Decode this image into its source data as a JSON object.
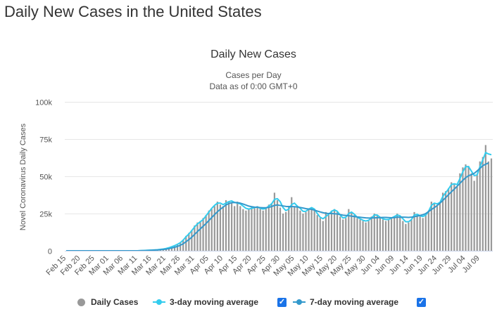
{
  "page": {
    "title": "Daily New Cases in the United States"
  },
  "colors": {
    "bars": "#999999",
    "ma3": "#33ccee",
    "ma7": "#3399cc",
    "grid": "#e6e6e6",
    "checkbox": "#1a73e8"
  },
  "chart_data": {
    "type": "bar",
    "title": "Daily New Cases",
    "subtitle_line1": "Cases per Day",
    "subtitle_line2": "Data as of 0:00 GMT+0",
    "ylabel": "Novel Coronavirus Daily Cases",
    "ylim": [
      0,
      100000
    ],
    "yticks": [
      0,
      25000,
      50000,
      75000,
      100000
    ],
    "ytick_labels": [
      "0",
      "25k",
      "50k",
      "75k",
      "100k"
    ],
    "x_labels": [
      "Feb 15",
      "Feb 20",
      "Feb 25",
      "Mar 01",
      "Mar 06",
      "Mar 11",
      "Mar 16",
      "Mar 21",
      "Mar 26",
      "Mar 31",
      "Apr 05",
      "Apr 10",
      "Apr 15",
      "Apr 20",
      "Apr 25",
      "Apr 30",
      "May 05",
      "May 10",
      "May 15",
      "May 20",
      "May 25",
      "May 30",
      "Jun 04",
      "Jun 09",
      "Jun 14",
      "Jun 19",
      "Jun 24",
      "Jun 29",
      "Jul 04",
      "Jul 09"
    ],
    "label_every": 5,
    "grid": true,
    "legend_position": "bottom",
    "series": [
      {
        "name": "Daily Cases",
        "kind": "bar",
        "values": [
          0,
          0,
          0,
          0,
          0,
          0,
          0,
          0,
          0,
          0,
          0,
          0,
          0,
          0,
          0,
          0,
          0,
          0,
          0,
          0,
          0,
          0,
          0,
          0,
          0,
          0,
          100,
          200,
          300,
          400,
          500,
          500,
          700,
          900,
          1200,
          1500,
          2000,
          2800,
          3500,
          4500,
          5500,
          7500,
          10000,
          12000,
          14000,
          17000,
          19000,
          20000,
          22000,
          24000,
          27000,
          28000,
          30000,
          33000,
          31000,
          30000,
          34000,
          33000,
          32000,
          30000,
          33000,
          30000,
          28000,
          27000,
          28000,
          30000,
          29000,
          30000,
          28000,
          27000,
          29000,
          31000,
          32000,
          39000,
          34000,
          29000,
          25000,
          26000,
          30000,
          36000,
          30000,
          29000,
          27000,
          25000,
          26000,
          28000,
          29000,
          27000,
          24000,
          22000,
          20000,
          26000,
          24000,
          27000,
          28000,
          26000,
          23000,
          21000,
          22000,
          28000,
          26000,
          24000,
          22000,
          21000,
          20000,
          19000,
          20000,
          23000,
          25000,
          24000,
          22000,
          21000,
          20000,
          21000,
          22000,
          23000,
          25000,
          23000,
          20000,
          18000,
          19000,
          21000,
          26000,
          24000,
          23000,
          22000,
          24000,
          27000,
          33000,
          32000,
          30000,
          32000,
          39000,
          40000,
          42000,
          46000,
          45000,
          43000,
          52000,
          56000,
          58000,
          57000,
          52000,
          47000,
          51000,
          60000,
          63000,
          71000,
          60000,
          62000
        ]
      },
      {
        "name": "3-day moving average",
        "kind": "line",
        "values": [
          0,
          0,
          0,
          0,
          0,
          0,
          0,
          0,
          0,
          0,
          0,
          0,
          0,
          0,
          0,
          0,
          0,
          0,
          0,
          0,
          0,
          0,
          0,
          0,
          0,
          0,
          100,
          200,
          300,
          400,
          500,
          600,
          700,
          950,
          1200,
          1550,
          2050,
          2750,
          3450,
          4350,
          5450,
          7150,
          9450,
          11300,
          13500,
          16000,
          18000,
          19500,
          21000,
          23500,
          26000,
          28500,
          30500,
          32000,
          32000,
          31000,
          32000,
          33000,
          33500,
          32500,
          32000,
          31500,
          30000,
          28500,
          28000,
          28500,
          29000,
          29500,
          28500,
          28000,
          28500,
          30000,
          31500,
          34500,
          35000,
          33000,
          29000,
          27000,
          28000,
          31000,
          32000,
          30000,
          28500,
          26500,
          26500,
          28000,
          29000,
          28000,
          25000,
          22500,
          21500,
          23000,
          24500,
          26500,
          27500,
          26500,
          24000,
          22000,
          22500,
          25000,
          26000,
          24500,
          22500,
          21500,
          20500,
          20000,
          20500,
          22000,
          24000,
          24000,
          22500,
          21500,
          21000,
          21000,
          22000,
          23000,
          24000,
          23500,
          21500,
          19500,
          19500,
          21000,
          24000,
          24500,
          23500,
          23000,
          24000,
          26500,
          30500,
          32000,
          31500,
          32500,
          36500,
          39000,
          41500,
          44500,
          45000,
          44500,
          48500,
          53000,
          56500,
          56500,
          53500,
          50500,
          51000,
          56500,
          61000,
          66000,
          65000,
          64500
        ]
      },
      {
        "name": "7-day moving average",
        "kind": "line",
        "values": [
          0,
          0,
          0,
          0,
          0,
          0,
          0,
          0,
          0,
          0,
          0,
          0,
          0,
          0,
          0,
          0,
          0,
          0,
          0,
          0,
          0,
          0,
          0,
          0,
          0,
          0,
          50,
          100,
          150,
          250,
          350,
          450,
          550,
          700,
          900,
          1100,
          1450,
          1850,
          2350,
          2950,
          3700,
          4700,
          6100,
          7500,
          9100,
          11000,
          12900,
          14700,
          16500,
          18300,
          20300,
          22300,
          24300,
          26200,
          27900,
          29300,
          30800,
          31700,
          32300,
          32400,
          32300,
          32000,
          31400,
          30700,
          30000,
          29600,
          29300,
          29200,
          29000,
          28900,
          28900,
          29200,
          29700,
          30500,
          30800,
          30400,
          30100,
          29800,
          29700,
          29700,
          29600,
          29400,
          29100,
          28700,
          28300,
          28000,
          27800,
          27300,
          26700,
          26100,
          25600,
          25200,
          25000,
          25000,
          24900,
          24700,
          24300,
          23900,
          23700,
          23500,
          23300,
          23000,
          22700,
          22500,
          22300,
          22100,
          22000,
          22000,
          22100,
          22200,
          22300,
          22400,
          22400,
          22300,
          22200,
          22300,
          22500,
          22600,
          22600,
          22500,
          22400,
          22600,
          22900,
          23300,
          23700,
          24200,
          25000,
          26300,
          27700,
          29000,
          30400,
          32000,
          33800,
          35700,
          37700,
          39600,
          41400,
          43300,
          45300,
          47300,
          49100,
          50400,
          51100,
          52000,
          53600,
          55300,
          57200,
          58100,
          59000
        ]
      }
    ]
  }
}
